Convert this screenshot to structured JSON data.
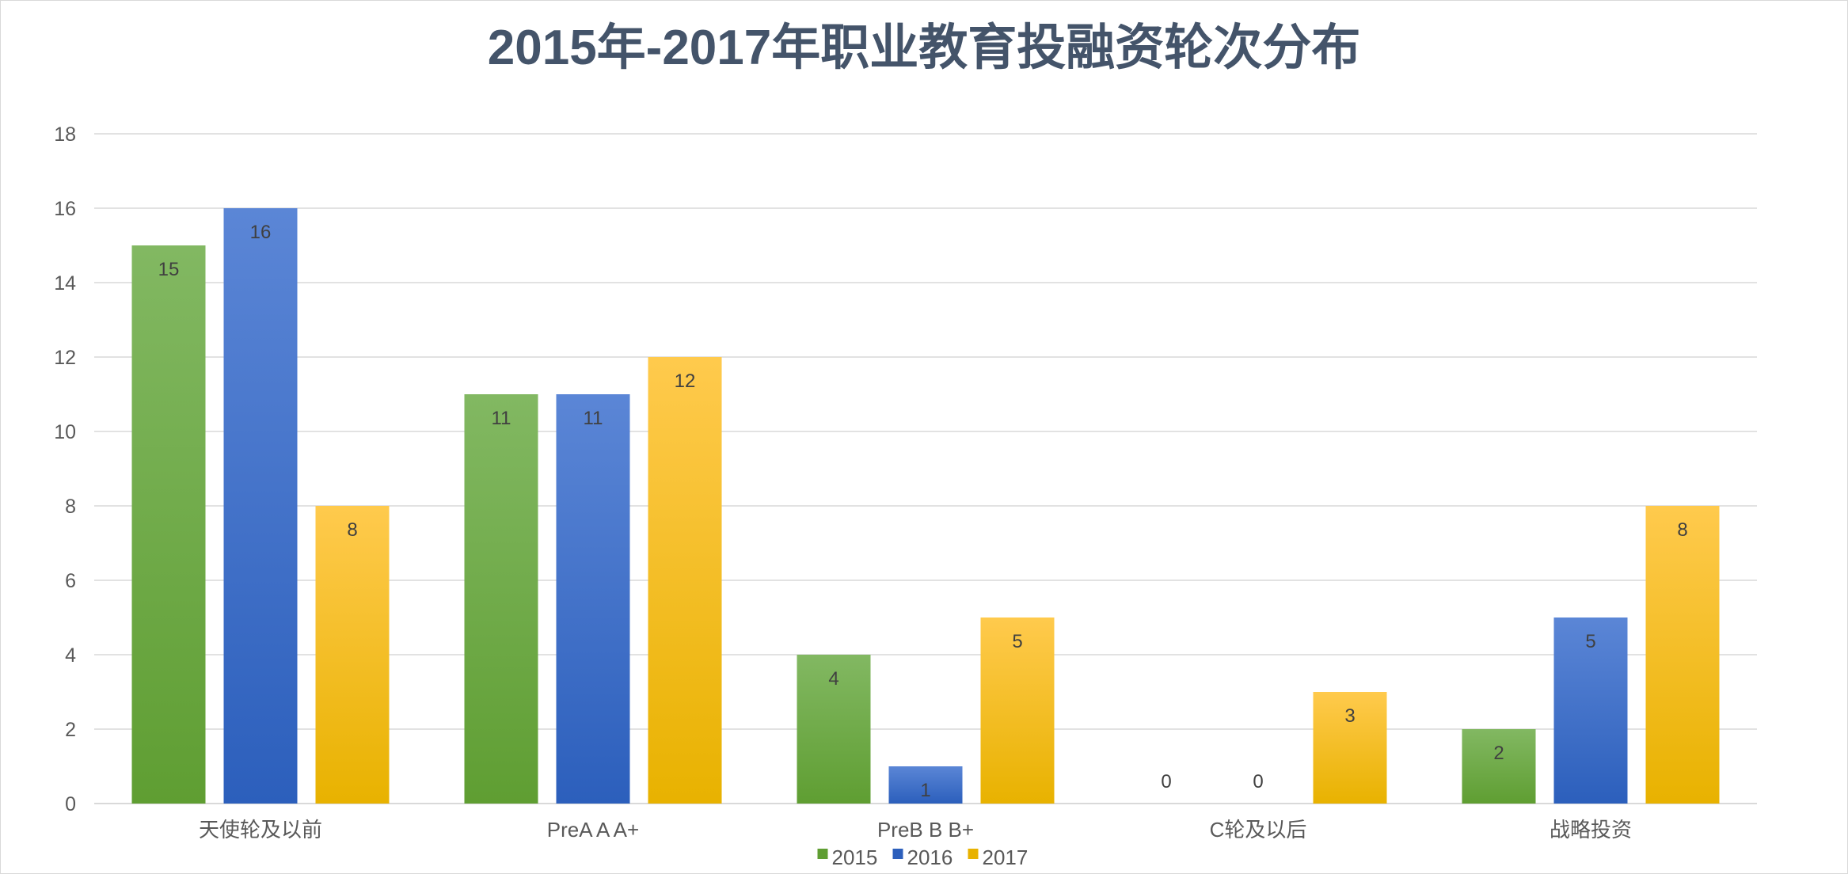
{
  "chart_data": {
    "type": "bar",
    "title": "2015年-2017年职业教育投融资轮次分布",
    "xlabel": "",
    "ylabel": "",
    "categories": [
      "天使轮及以前",
      "PreA A A+",
      "PreB B B+",
      "C轮及以后",
      "战略投资"
    ],
    "series": [
      {
        "name": "2015",
        "values": [
          15,
          11,
          4,
          0,
          2
        ],
        "color_top": "#82b862",
        "color_bottom": "#5f9e32"
      },
      {
        "name": "2016",
        "values": [
          16,
          11,
          1,
          0,
          5
        ],
        "color_top": "#5b86d6",
        "color_bottom": "#2c5fbc"
      },
      {
        "name": "2017",
        "values": [
          8,
          12,
          5,
          3,
          8
        ],
        "color_top": "#ffca4d",
        "color_bottom": "#e8b200"
      }
    ],
    "ylim": [
      0,
      18
    ],
    "yticks": [
      0,
      2,
      4,
      6,
      8,
      10,
      12,
      14,
      16,
      18
    ],
    "grid": true,
    "legend_position": "bottom",
    "data_labels": true
  }
}
